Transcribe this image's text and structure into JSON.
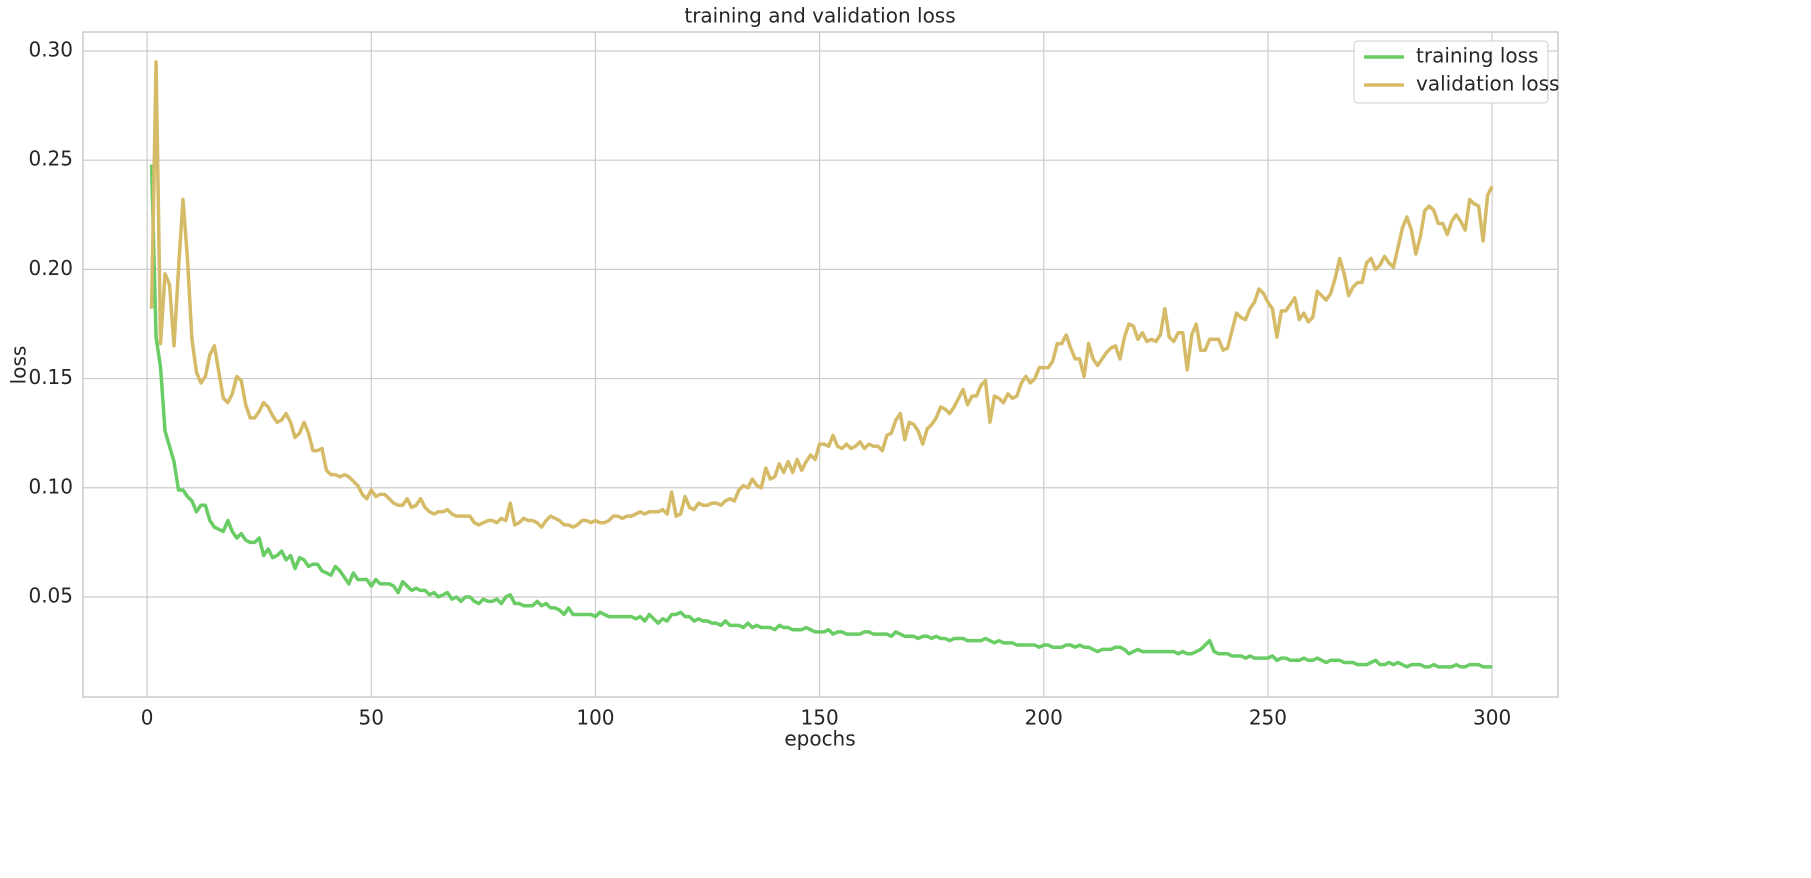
{
  "chart_data": {
    "type": "line",
    "title": "training and validation loss",
    "x_label": "epochs",
    "y_label": "loss",
    "x": [
      1,
      2,
      3,
      4,
      5,
      6,
      7,
      8,
      9,
      10,
      11,
      12,
      13,
      14,
      15,
      16,
      17,
      18,
      19,
      20,
      21,
      22,
      23,
      24,
      25,
      26,
      27,
      28,
      29,
      30,
      31,
      32,
      33,
      34,
      35,
      36,
      37,
      38,
      39,
      40,
      41,
      42,
      43,
      44,
      45,
      46,
      47,
      48,
      49,
      50,
      51,
      52,
      53,
      54,
      55,
      56,
      57,
      58,
      59,
      60,
      61,
      62,
      63,
      64,
      65,
      66,
      67,
      68,
      69,
      70,
      71,
      72,
      73,
      74,
      75,
      76,
      77,
      78,
      79,
      80,
      81,
      82,
      83,
      84,
      85,
      86,
      87,
      88,
      89,
      90,
      91,
      92,
      93,
      94,
      95,
      96,
      97,
      98,
      99,
      100,
      101,
      102,
      103,
      104,
      105,
      106,
      107,
      108,
      109,
      110,
      111,
      112,
      113,
      114,
      115,
      116,
      117,
      118,
      119,
      120,
      121,
      122,
      123,
      124,
      125,
      126,
      127,
      128,
      129,
      130,
      131,
      132,
      133,
      134,
      135,
      136,
      137,
      138,
      139,
      140,
      141,
      142,
      143,
      144,
      145,
      146,
      147,
      148,
      149,
      150,
      151,
      152,
      153,
      154,
      155,
      156,
      157,
      158,
      159,
      160,
      161,
      162,
      163,
      164,
      165,
      166,
      167,
      168,
      169,
      170,
      171,
      172,
      173,
      174,
      175,
      176,
      177,
      178,
      179,
      180,
      181,
      182,
      183,
      184,
      185,
      186,
      187,
      188,
      189,
      190,
      191,
      192,
      193,
      194,
      195,
      196,
      197,
      198,
      199,
      200,
      201,
      202,
      203,
      204,
      205,
      206,
      207,
      208,
      209,
      210,
      211,
      212,
      213,
      214,
      215,
      216,
      217,
      218,
      219,
      220,
      221,
      222,
      223,
      224,
      225,
      226,
      227,
      228,
      229,
      230,
      231,
      232,
      233,
      234,
      235,
      236,
      237,
      238,
      239,
      240,
      241,
      242,
      243,
      244,
      245,
      246,
      247,
      248,
      249,
      250,
      251,
      252,
      253,
      254,
      255,
      256,
      257,
      258,
      259,
      260,
      261,
      262,
      263,
      264,
      265,
      266,
      267,
      268,
      269,
      270,
      271,
      272,
      273,
      274,
      275,
      276,
      277,
      278,
      279,
      280,
      281,
      282,
      283,
      284,
      285,
      286,
      287,
      288,
      289,
      290,
      291,
      292,
      293,
      294,
      295,
      296,
      297,
      298,
      299,
      300
    ],
    "series": [
      {
        "name": "training loss",
        "color": "#6acc64",
        "values": [
          0.248,
          0.169,
          0.155,
          0.126,
          0.119,
          0.112,
          0.099,
          0.099,
          0.096,
          0.094,
          0.089,
          0.092,
          0.092,
          0.085,
          0.082,
          0.081,
          0.08,
          0.085,
          0.08,
          0.077,
          0.079,
          0.076,
          0.075,
          0.075,
          0.077,
          0.069,
          0.072,
          0.068,
          0.069,
          0.071,
          0.067,
          0.069,
          0.063,
          0.068,
          0.067,
          0.064,
          0.065,
          0.065,
          0.062,
          0.061,
          0.06,
          0.064,
          0.062,
          0.059,
          0.056,
          0.061,
          0.058,
          0.058,
          0.058,
          0.055,
          0.058,
          0.056,
          0.056,
          0.056,
          0.055,
          0.052,
          0.057,
          0.055,
          0.053,
          0.054,
          0.053,
          0.053,
          0.051,
          0.052,
          0.05,
          0.051,
          0.052,
          0.049,
          0.05,
          0.048,
          0.05,
          0.05,
          0.048,
          0.047,
          0.049,
          0.048,
          0.048,
          0.049,
          0.047,
          0.05,
          0.051,
          0.047,
          0.047,
          0.046,
          0.046,
          0.046,
          0.048,
          0.046,
          0.047,
          0.045,
          0.045,
          0.044,
          0.042,
          0.045,
          0.042,
          0.042,
          0.042,
          0.042,
          0.042,
          0.041,
          0.043,
          0.042,
          0.041,
          0.041,
          0.041,
          0.041,
          0.041,
          0.041,
          0.04,
          0.041,
          0.039,
          0.042,
          0.04,
          0.038,
          0.04,
          0.039,
          0.042,
          0.042,
          0.043,
          0.041,
          0.041,
          0.039,
          0.04,
          0.039,
          0.039,
          0.038,
          0.038,
          0.037,
          0.039,
          0.037,
          0.037,
          0.037,
          0.036,
          0.038,
          0.036,
          0.037,
          0.036,
          0.036,
          0.036,
          0.035,
          0.037,
          0.036,
          0.036,
          0.035,
          0.035,
          0.035,
          0.036,
          0.035,
          0.034,
          0.034,
          0.034,
          0.035,
          0.033,
          0.034,
          0.034,
          0.033,
          0.033,
          0.033,
          0.033,
          0.034,
          0.034,
          0.033,
          0.033,
          0.033,
          0.033,
          0.032,
          0.034,
          0.033,
          0.032,
          0.032,
          0.032,
          0.031,
          0.032,
          0.032,
          0.031,
          0.032,
          0.031,
          0.031,
          0.03,
          0.031,
          0.031,
          0.031,
          0.03,
          0.03,
          0.03,
          0.03,
          0.031,
          0.03,
          0.029,
          0.03,
          0.029,
          0.029,
          0.029,
          0.028,
          0.028,
          0.028,
          0.028,
          0.028,
          0.027,
          0.028,
          0.028,
          0.027,
          0.027,
          0.027,
          0.028,
          0.028,
          0.027,
          0.028,
          0.027,
          0.027,
          0.026,
          0.025,
          0.026,
          0.026,
          0.026,
          0.027,
          0.027,
          0.026,
          0.024,
          0.025,
          0.026,
          0.025,
          0.025,
          0.025,
          0.025,
          0.025,
          0.025,
          0.025,
          0.025,
          0.024,
          0.025,
          0.024,
          0.024,
          0.025,
          0.026,
          0.028,
          0.03,
          0.025,
          0.024,
          0.024,
          0.024,
          0.023,
          0.023,
          0.023,
          0.022,
          0.023,
          0.022,
          0.022,
          0.022,
          0.022,
          0.023,
          0.021,
          0.022,
          0.022,
          0.021,
          0.021,
          0.021,
          0.022,
          0.021,
          0.021,
          0.022,
          0.021,
          0.02,
          0.021,
          0.021,
          0.021,
          0.02,
          0.02,
          0.02,
          0.019,
          0.019,
          0.019,
          0.02,
          0.021,
          0.019,
          0.019,
          0.02,
          0.019,
          0.02,
          0.019,
          0.018,
          0.019,
          0.019,
          0.019,
          0.018,
          0.018,
          0.019,
          0.018,
          0.018,
          0.018,
          0.018,
          0.019,
          0.018,
          0.018,
          0.019,
          0.019,
          0.019,
          0.018,
          0.018,
          0.018
        ]
      },
      {
        "name": "validation loss",
        "color": "#d5bb67",
        "values": [
          0.182,
          0.295,
          0.166,
          0.198,
          0.193,
          0.165,
          0.2,
          0.232,
          0.205,
          0.168,
          0.153,
          0.148,
          0.151,
          0.161,
          0.165,
          0.153,
          0.141,
          0.139,
          0.143,
          0.151,
          0.149,
          0.138,
          0.132,
          0.132,
          0.135,
          0.139,
          0.137,
          0.133,
          0.13,
          0.131,
          0.134,
          0.13,
          0.123,
          0.125,
          0.13,
          0.125,
          0.117,
          0.117,
          0.118,
          0.108,
          0.106,
          0.106,
          0.105,
          0.106,
          0.105,
          0.103,
          0.101,
          0.097,
          0.095,
          0.099,
          0.096,
          0.097,
          0.097,
          0.095,
          0.093,
          0.092,
          0.092,
          0.095,
          0.091,
          0.092,
          0.095,
          0.091,
          0.089,
          0.088,
          0.089,
          0.089,
          0.09,
          0.088,
          0.087,
          0.087,
          0.087,
          0.087,
          0.084,
          0.083,
          0.084,
          0.085,
          0.085,
          0.084,
          0.086,
          0.085,
          0.093,
          0.083,
          0.084,
          0.086,
          0.085,
          0.085,
          0.084,
          0.082,
          0.085,
          0.087,
          0.086,
          0.085,
          0.083,
          0.083,
          0.082,
          0.083,
          0.085,
          0.085,
          0.084,
          0.085,
          0.084,
          0.084,
          0.085,
          0.087,
          0.087,
          0.086,
          0.087,
          0.087,
          0.088,
          0.089,
          0.088,
          0.089,
          0.089,
          0.089,
          0.09,
          0.088,
          0.098,
          0.087,
          0.088,
          0.096,
          0.091,
          0.09,
          0.093,
          0.092,
          0.092,
          0.093,
          0.093,
          0.092,
          0.094,
          0.095,
          0.094,
          0.099,
          0.101,
          0.1,
          0.104,
          0.101,
          0.1,
          0.109,
          0.104,
          0.105,
          0.111,
          0.107,
          0.112,
          0.107,
          0.113,
          0.108,
          0.112,
          0.115,
          0.113,
          0.12,
          0.12,
          0.119,
          0.124,
          0.119,
          0.118,
          0.12,
          0.118,
          0.119,
          0.121,
          0.118,
          0.12,
          0.119,
          0.119,
          0.117,
          0.124,
          0.125,
          0.131,
          0.134,
          0.122,
          0.13,
          0.129,
          0.126,
          0.12,
          0.127,
          0.129,
          0.132,
          0.137,
          0.136,
          0.134,
          0.137,
          0.141,
          0.145,
          0.138,
          0.142,
          0.142,
          0.147,
          0.149,
          0.13,
          0.142,
          0.141,
          0.139,
          0.143,
          0.141,
          0.142,
          0.148,
          0.151,
          0.148,
          0.15,
          0.155,
          0.155,
          0.155,
          0.158,
          0.166,
          0.166,
          0.17,
          0.164,
          0.159,
          0.159,
          0.151,
          0.166,
          0.159,
          0.156,
          0.159,
          0.162,
          0.164,
          0.165,
          0.159,
          0.169,
          0.175,
          0.174,
          0.168,
          0.171,
          0.167,
          0.168,
          0.167,
          0.17,
          0.182,
          0.169,
          0.167,
          0.171,
          0.171,
          0.154,
          0.17,
          0.175,
          0.163,
          0.163,
          0.168,
          0.168,
          0.168,
          0.163,
          0.164,
          0.172,
          0.18,
          0.178,
          0.177,
          0.182,
          0.185,
          0.191,
          0.189,
          0.185,
          0.182,
          0.169,
          0.181,
          0.181,
          0.184,
          0.187,
          0.177,
          0.18,
          0.176,
          0.178,
          0.19,
          0.188,
          0.186,
          0.189,
          0.196,
          0.205,
          0.198,
          0.188,
          0.192,
          0.194,
          0.194,
          0.203,
          0.205,
          0.2,
          0.202,
          0.206,
          0.203,
          0.201,
          0.21,
          0.219,
          0.224,
          0.218,
          0.207,
          0.215,
          0.227,
          0.229,
          0.227,
          0.221,
          0.221,
          0.216,
          0.222,
          0.225,
          0.222,
          0.218,
          0.232,
          0.23,
          0.229,
          0.213,
          0.234,
          0.238
        ]
      }
    ],
    "xlim": [
      -14.3,
      314.7
    ],
    "ylim": [
      0.0042,
      0.3087
    ],
    "xticks": [
      0,
      50,
      100,
      150,
      200,
      250,
      300
    ],
    "yticks": [
      0.05,
      {
        "value": 0.1,
        "label": "0.10"
      },
      0.15,
      {
        "value": 0.2,
        "label": "0.20"
      },
      0.25,
      {
        "value": 0.3,
        "label": "0.30"
      }
    ],
    "grid": true,
    "legend": "upper right"
  }
}
